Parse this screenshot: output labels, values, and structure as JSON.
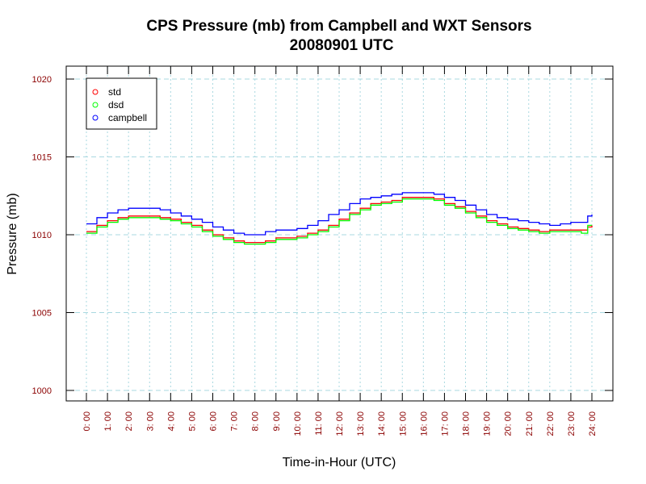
{
  "chart_data": {
    "type": "line",
    "title": "CPS Pressure (mb) from Campbell and WXT Sensors",
    "subtitle": "20080901  UTC",
    "xlabel": "Time-in-Hour (UTC)",
    "ylabel": "Pressure (mb)",
    "xlim": [
      0,
      24
    ],
    "ylim": [
      1000,
      1020
    ],
    "x_tick_labels": [
      "0: 00",
      "1: 00",
      "2: 00",
      "3: 00",
      "4: 00",
      "5: 00",
      "6: 00",
      "7: 00",
      "8: 00",
      "9: 00",
      "10: 00",
      "11: 00",
      "12: 00",
      "13: 00",
      "14: 00",
      "15: 00",
      "16: 00",
      "17: 00",
      "18: 00",
      "19: 00",
      "20: 00",
      "21: 00",
      "22: 00",
      "23: 00",
      "24: 00"
    ],
    "y_ticks": [
      1000,
      1005,
      1010,
      1015,
      1020
    ],
    "y_tick_labels": [
      "1000",
      "1005",
      "1010",
      "1015",
      "1020"
    ],
    "grid": true,
    "legend_position": "top-left",
    "x": [
      0,
      0.5,
      1,
      1.5,
      2,
      2.5,
      3,
      3.5,
      4,
      4.5,
      5,
      5.5,
      6,
      6.5,
      7,
      7.5,
      8,
      8.5,
      9,
      9.5,
      10,
      10.5,
      11,
      11.5,
      12,
      12.5,
      13,
      13.5,
      14,
      14.5,
      15,
      15.5,
      16,
      16.5,
      17,
      17.5,
      18,
      18.5,
      19,
      19.5,
      20,
      20.5,
      21,
      21.5,
      22,
      22.5,
      23,
      23.5,
      23.8,
      24
    ],
    "series": [
      {
        "name": "std",
        "color": "#ff0000",
        "values": [
          1010.2,
          1010.6,
          1010.9,
          1011.1,
          1011.2,
          1011.2,
          1011.2,
          1011.1,
          1011.0,
          1010.8,
          1010.6,
          1010.3,
          1010.0,
          1009.8,
          1009.6,
          1009.5,
          1009.5,
          1009.6,
          1009.8,
          1009.8,
          1009.9,
          1010.1,
          1010.3,
          1010.6,
          1011.0,
          1011.4,
          1011.7,
          1012.0,
          1012.1,
          1012.2,
          1012.4,
          1012.4,
          1012.4,
          1012.3,
          1012.0,
          1011.8,
          1011.5,
          1011.2,
          1010.9,
          1010.7,
          1010.5,
          1010.4,
          1010.3,
          1010.2,
          1010.3,
          1010.3,
          1010.3,
          1010.3,
          1010.5,
          1010.6
        ]
      },
      {
        "name": "dsd",
        "color": "#00ff00",
        "values": [
          1010.1,
          1010.5,
          1010.8,
          1011.0,
          1011.1,
          1011.1,
          1011.1,
          1011.0,
          1010.9,
          1010.7,
          1010.5,
          1010.2,
          1009.9,
          1009.7,
          1009.5,
          1009.4,
          1009.4,
          1009.5,
          1009.7,
          1009.7,
          1009.8,
          1010.0,
          1010.2,
          1010.5,
          1010.9,
          1011.3,
          1011.6,
          1011.9,
          1012.0,
          1012.1,
          1012.3,
          1012.3,
          1012.3,
          1012.2,
          1011.9,
          1011.7,
          1011.4,
          1011.1,
          1010.8,
          1010.6,
          1010.4,
          1010.3,
          1010.2,
          1010.1,
          1010.2,
          1010.2,
          1010.2,
          1010.1,
          1010.6,
          1010.6
        ]
      },
      {
        "name": "campbell",
        "color": "#0000ff",
        "values": [
          1010.7,
          1011.1,
          1011.4,
          1011.6,
          1011.7,
          1011.7,
          1011.7,
          1011.6,
          1011.4,
          1011.2,
          1011.0,
          1010.8,
          1010.5,
          1010.3,
          1010.1,
          1010.0,
          1010.0,
          1010.2,
          1010.3,
          1010.3,
          1010.4,
          1010.6,
          1010.9,
          1011.3,
          1011.6,
          1012.0,
          1012.3,
          1012.4,
          1012.5,
          1012.6,
          1012.7,
          1012.7,
          1012.7,
          1012.6,
          1012.4,
          1012.2,
          1011.9,
          1011.6,
          1011.3,
          1011.1,
          1011.0,
          1010.9,
          1010.8,
          1010.7,
          1010.6,
          1010.7,
          1010.8,
          1010.8,
          1011.2,
          1011.3
        ]
      }
    ]
  }
}
